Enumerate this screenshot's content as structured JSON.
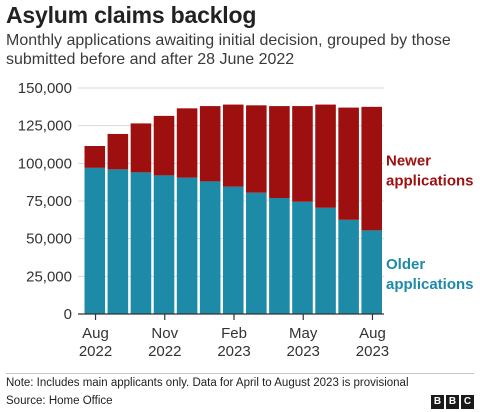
{
  "title": "Asylum claims backlog",
  "subtitle": "Monthly applications awaiting initial decision, grouped by those submitted before and after 28 June 2022",
  "note": "Note: Includes main applicants only. Data for April to August 2023 is provisional",
  "source": "Source: Home Office",
  "logo_letters": [
    "B",
    "B",
    "C"
  ],
  "colors": {
    "newer": "#9e0f0f",
    "older": "#1d8aa8",
    "axis": "#333333",
    "grid": "#d9d9d9"
  },
  "chart_data": {
    "type": "bar",
    "stacked": true,
    "categories": [
      "Aug 2022",
      "Sep 2022",
      "Oct 2022",
      "Nov 2022",
      "Dec 2022",
      "Jan 2023",
      "Feb 2023",
      "Mar 2023",
      "Apr 2023",
      "May 2023",
      "Jun 2023",
      "Jul 2023",
      "Aug 2023"
    ],
    "series": [
      {
        "name": "Older applications",
        "values": [
          97000,
          96000,
          94000,
          92000,
          90500,
          88000,
          84500,
          80500,
          77000,
          74500,
          70500,
          62500,
          55500
        ]
      },
      {
        "name": "Newer applications",
        "values": [
          14500,
          23500,
          32500,
          39500,
          46000,
          50000,
          54500,
          58000,
          61000,
          63500,
          68500,
          74500,
          82000
        ]
      }
    ],
    "ylim": [
      0,
      150000
    ],
    "yticks": [
      0,
      25000,
      50000,
      75000,
      100000,
      125000,
      150000
    ],
    "ytick_labels": [
      "0",
      "25,000",
      "50,000",
      "75,000",
      "100,000",
      "125,000",
      "150,000"
    ],
    "xtick_labels": [
      {
        "index": 0,
        "month": "Aug",
        "year": "2022"
      },
      {
        "index": 3,
        "month": "Nov",
        "year": "2022"
      },
      {
        "index": 6,
        "month": "Feb",
        "year": "2023"
      },
      {
        "index": 9,
        "month": "May",
        "year": "2023"
      },
      {
        "index": 12,
        "month": "Aug",
        "year": "2023"
      }
    ],
    "labels": [
      {
        "series": 1,
        "lines": [
          "Newer",
          "applications"
        ]
      },
      {
        "series": 0,
        "lines": [
          "Older",
          "applications"
        ]
      }
    ],
    "grid": true,
    "xlabel": "",
    "ylabel": ""
  }
}
